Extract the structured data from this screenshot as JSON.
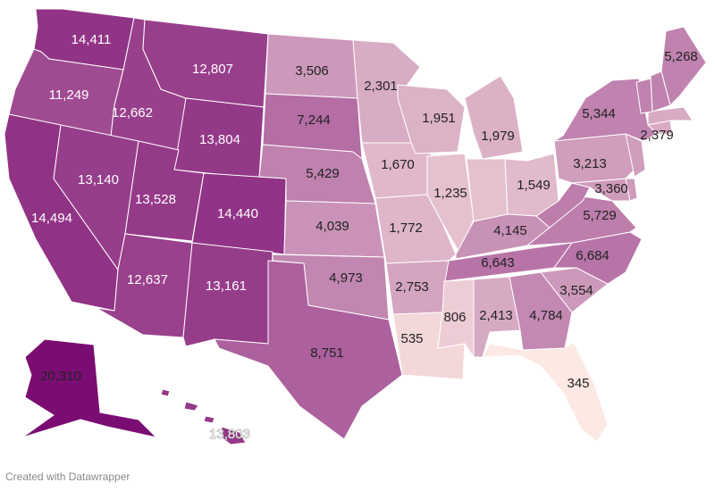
{
  "credit": "Created with Datawrapper",
  "color_scale": {
    "low": "#fde9e3",
    "high": "#7a0d72"
  },
  "chart_data": {
    "type": "choropleth",
    "region": "United States",
    "states": [
      {
        "code": "WA",
        "value": 14411
      },
      {
        "code": "OR",
        "value": 11249
      },
      {
        "code": "CA",
        "value": 14494
      },
      {
        "code": "ID",
        "value": 12662
      },
      {
        "code": "NV",
        "value": 13140
      },
      {
        "code": "MT",
        "value": 12807
      },
      {
        "code": "WY",
        "value": 13804
      },
      {
        "code": "UT",
        "value": 13528
      },
      {
        "code": "CO",
        "value": 14440
      },
      {
        "code": "AZ",
        "value": 12637
      },
      {
        "code": "NM",
        "value": 13161
      },
      {
        "code": "ND",
        "value": 3506
      },
      {
        "code": "SD",
        "value": 7244
      },
      {
        "code": "NE",
        "value": 5429
      },
      {
        "code": "KS",
        "value": 4039
      },
      {
        "code": "OK",
        "value": 4973
      },
      {
        "code": "TX",
        "value": 8751
      },
      {
        "code": "MN",
        "value": 2301
      },
      {
        "code": "IA",
        "value": 1670
      },
      {
        "code": "MO",
        "value": 1772
      },
      {
        "code": "AR",
        "value": 2753
      },
      {
        "code": "LA",
        "value": 535
      },
      {
        "code": "WI",
        "value": 1951
      },
      {
        "code": "IL",
        "value": 1235
      },
      {
        "code": "MI",
        "value": 1979
      },
      {
        "code": "IN",
        "value": null
      },
      {
        "code": "OH",
        "value": 1549
      },
      {
        "code": "KY",
        "value": 4145
      },
      {
        "code": "TN",
        "value": 6643
      },
      {
        "code": "MS",
        "value": 806
      },
      {
        "code": "AL",
        "value": 2413
      },
      {
        "code": "GA",
        "value": 4784
      },
      {
        "code": "FL",
        "value": 345
      },
      {
        "code": "SC",
        "value": 3554
      },
      {
        "code": "NC",
        "value": 6684
      },
      {
        "code": "VA",
        "value": 5729
      },
      {
        "code": "WV",
        "value": null
      },
      {
        "code": "MD",
        "value": 3360
      },
      {
        "code": "PA",
        "value": 3213
      },
      {
        "code": "NY",
        "value": 5344
      },
      {
        "code": "VT",
        "value": null
      },
      {
        "code": "NH",
        "value": null
      },
      {
        "code": "ME",
        "value": 5268
      },
      {
        "code": "MA",
        "value": 2379
      },
      {
        "code": "CT",
        "value": null
      },
      {
        "code": "NJ",
        "value": null
      },
      {
        "code": "DE",
        "value": null
      },
      {
        "code": "AK",
        "value": 20310
      },
      {
        "code": "HI",
        "value": 13803
      }
    ]
  }
}
